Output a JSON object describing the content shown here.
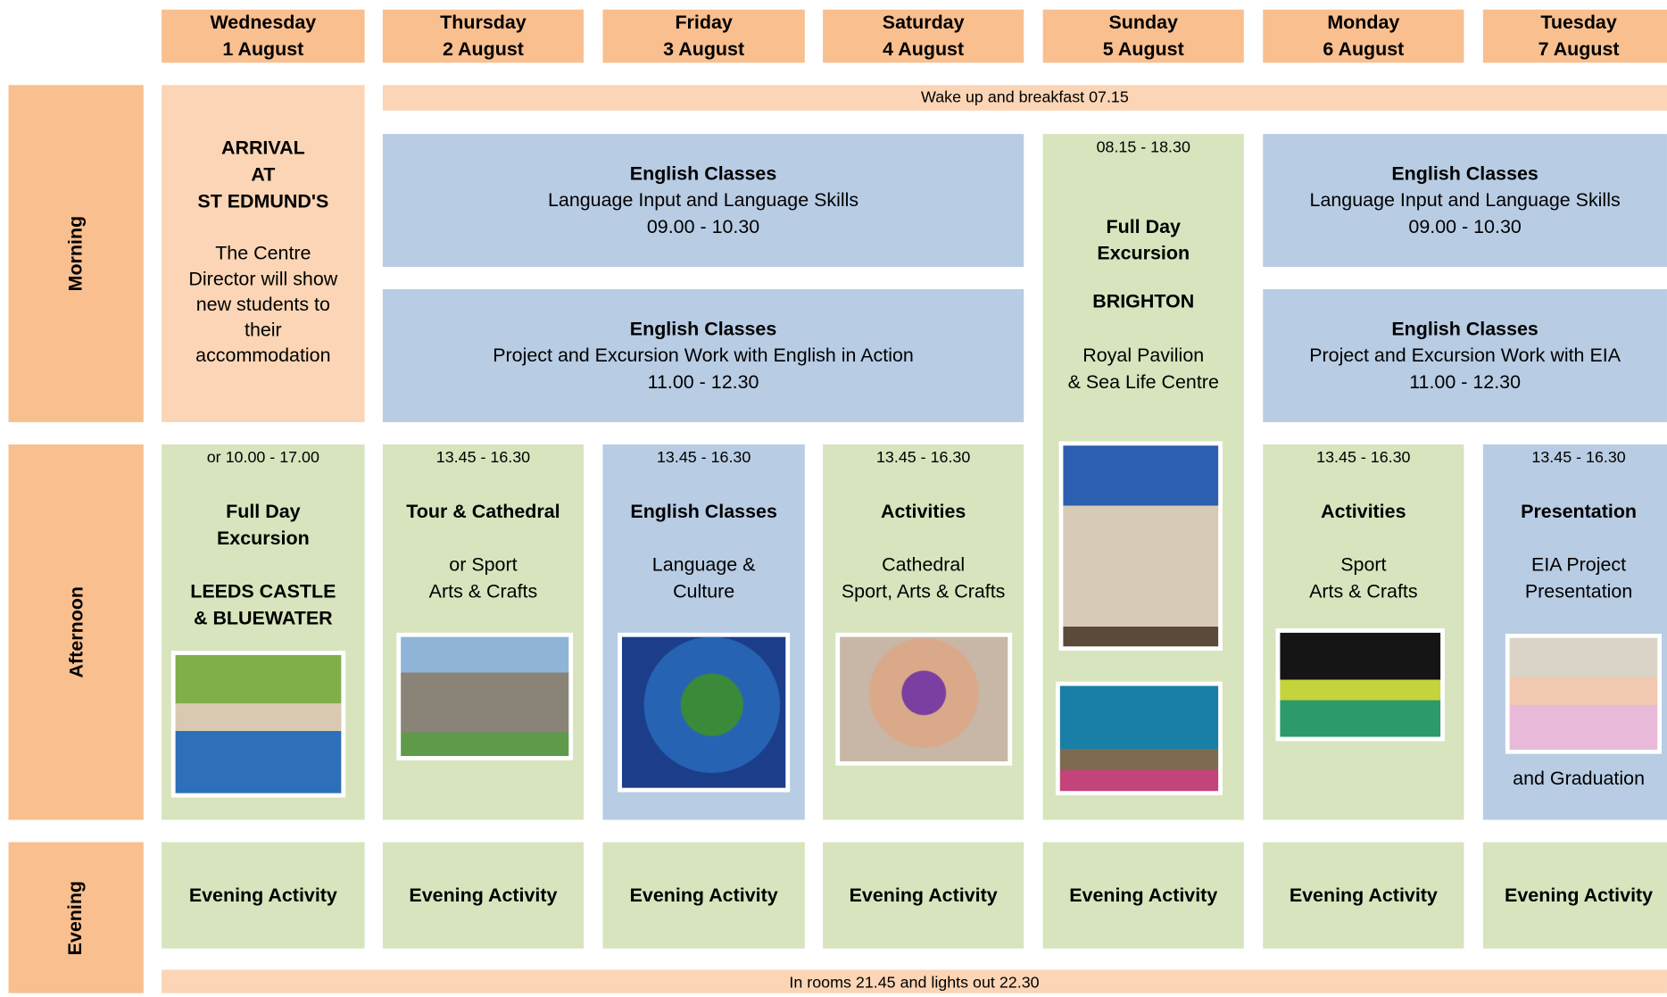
{
  "days": [
    {
      "name": "Wednesday",
      "date": "1 August"
    },
    {
      "name": "Thursday",
      "date": "2 August"
    },
    {
      "name": "Friday",
      "date": "3 August"
    },
    {
      "name": "Saturday",
      "date": "4 August"
    },
    {
      "name": "Sunday",
      "date": "5 August"
    },
    {
      "name": "Monday",
      "date": "6 August"
    },
    {
      "name": "Tuesday",
      "date": "7 August"
    }
  ],
  "periods": [
    "Morning",
    "Afternoon",
    "Evening"
  ],
  "banners": {
    "breakfast": "Wake up and breakfast 07.15",
    "lights_out": "In rooms 21.45 and lights out 22.30"
  },
  "arrival": {
    "title_lines": [
      "ARRIVAL",
      "AT",
      "ST EDMUND'S"
    ],
    "text": "The Centre Director will show new students to their accommodation"
  },
  "morning_blocks": [
    {
      "sessions": [
        {
          "title": "English Classes",
          "subtitle": "Language Input and Language Skills",
          "time": "09.00 - 10.30"
        },
        {
          "title": "English Classes",
          "subtitle": "Project and Excursion Work with English in Action",
          "time": "11.00 - 12.30"
        }
      ]
    },
    {
      "sessions": [
        {
          "title": "English Classes",
          "subtitle": "Language Input and Language Skills",
          "time": "09.00 - 10.30"
        },
        {
          "title": "English Classes",
          "subtitle": "Project and Excursion Work with EIA",
          "time": "11.00 - 12.30"
        }
      ]
    }
  ],
  "sunday_excursion": {
    "time": "08.15 - 18.30",
    "title_lines": [
      "Full Day",
      "Excursion"
    ],
    "destination": "BRIGHTON",
    "places": [
      "Royal Pavilion",
      "& Sea Life Centre"
    ]
  },
  "afternoon": [
    {
      "time": "or 10.00 - 17.00",
      "title_lines": [
        "Full Day",
        "Excursion"
      ],
      "bold_lines": [
        "LEEDS CASTLE",
        "& BLUEWATER"
      ]
    },
    {
      "time": "13.45 - 16.30",
      "title_lines": [
        "Tour & Cathedral"
      ],
      "lines": [
        "or Sport",
        "Arts & Crafts"
      ]
    },
    {
      "time": "13.45 - 16.30",
      "title_lines": [
        "English Classes"
      ],
      "lines": [
        "Language &",
        "Culture"
      ]
    },
    {
      "time": "13.45 - 16.30",
      "title_lines": [
        "Activities"
      ],
      "lines": [
        "Cathedral",
        "Sport, Arts & Crafts"
      ]
    },
    {
      "time": "13.45 - 16.30",
      "title_lines": [
        "Activities"
      ],
      "lines": [
        "Sport",
        "Arts & Crafts"
      ]
    },
    {
      "time": "13.45 - 16.30",
      "title_lines": [
        "Presentation"
      ],
      "lines": [
        "EIA Project",
        "Presentation"
      ],
      "footer": "and Graduation"
    }
  ],
  "evening": [
    "Evening Activity",
    "Evening Activity",
    "Evening Activity",
    "Evening Activity",
    "Evening Activity",
    "Evening Activity",
    "Evening Activity"
  ]
}
